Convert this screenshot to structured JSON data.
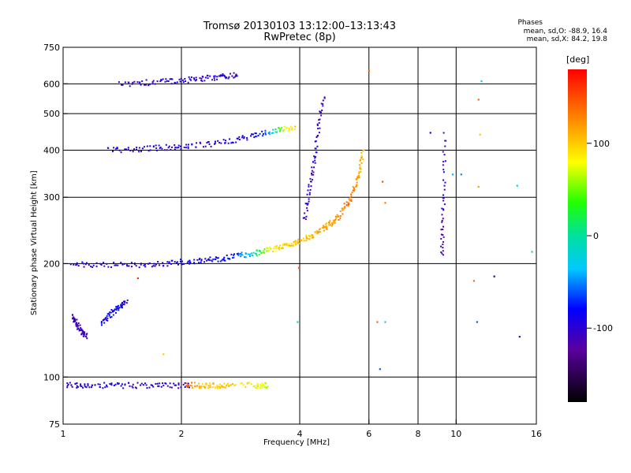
{
  "title_line1": "Tromsø 20130103 13:12:00–13:13:43",
  "title_line2": "RwPretec (8p)",
  "phases": {
    "heading": "Phases",
    "line1": "mean, sd,O: -88.9, 16.4",
    "line2": "mean, sd,X:  84.2, 19.8"
  },
  "colorbar": {
    "unit": "[deg]",
    "ticks": [
      "100",
      "0",
      "-100"
    ],
    "tick_values": [
      100,
      0,
      -100
    ],
    "range": [
      -180,
      180
    ]
  },
  "chart_data": {
    "type": "scatter",
    "xlabel": "Frequency [MHz]",
    "ylabel": "Stationary phase Virtual Height [km]",
    "x_scale": "log",
    "y_scale": "log",
    "xlim": [
      1,
      16
    ],
    "ylim": [
      75,
      750
    ],
    "x_ticks": [
      "1",
      "2",
      "4",
      "6",
      "8",
      "10",
      "16"
    ],
    "x_tick_values": [
      1,
      2,
      4,
      6,
      8,
      10,
      16
    ],
    "y_ticks": [
      "750",
      "600",
      "500",
      "400",
      "300",
      "200",
      "100",
      "75"
    ],
    "y_tick_values": [
      750,
      600,
      500,
      400,
      300,
      200,
      100,
      75
    ],
    "grid": true,
    "traces": [
      {
        "f": [
          1.05,
          1.2,
          1.4,
          1.6,
          1.8,
          2.0,
          2.2,
          2.4,
          2.6,
          2.8,
          3.0,
          3.2,
          3.4,
          3.6,
          3.8,
          4.0,
          4.2,
          4.4,
          4.6,
          4.8,
          5.0,
          5.2,
          5.4,
          5.6,
          5.7,
          5.8
        ],
        "h": [
          200,
          198,
          198,
          199,
          200,
          202,
          203,
          205,
          207,
          210,
          212,
          215,
          218,
          222,
          226,
          230,
          235,
          240,
          247,
          255,
          265,
          280,
          300,
          330,
          360,
          400
        ],
        "phase": [
          -100,
          -100,
          -100,
          -100,
          -95,
          -90,
          -90,
          -85,
          -80,
          -60,
          -30,
          40,
          80,
          95,
          100,
          100,
          105,
          110,
          115,
          120,
          125,
          130,
          135,
          120,
          110,
          100
        ]
      },
      {
        "f": [
          1.3,
          1.5,
          1.7,
          1.9,
          2.1,
          2.4,
          2.7,
          3.0,
          3.3,
          3.6,
          3.9
        ],
        "h": [
          400,
          402,
          405,
          407,
          410,
          415,
          425,
          435,
          445,
          455,
          460
        ],
        "phase": [
          -95,
          -100,
          -95,
          -100,
          -100,
          -95,
          -90,
          -85,
          -70,
          60,
          100
        ]
      },
      {
        "f": [
          1.4,
          1.6,
          1.8,
          2.0,
          2.2,
          2.4,
          2.6,
          2.8
        ],
        "h": [
          600,
          603,
          608,
          612,
          618,
          622,
          628,
          633
        ],
        "phase": [
          -100,
          -100,
          -100,
          -100,
          -100,
          -100,
          -100,
          -100
        ]
      },
      {
        "f": [
          1.02,
          1.1,
          1.2,
          1.35,
          1.5,
          1.7,
          1.9,
          2.1
        ],
        "h": [
          95,
          95,
          95,
          95,
          95,
          95,
          95,
          95
        ],
        "phase": [
          -95,
          -95,
          -95,
          -90,
          -100,
          -100,
          -100,
          -100
        ]
      },
      {
        "f": [
          2.05,
          2.2,
          2.35,
          2.5,
          2.65,
          3.1,
          3.2,
          3.3
        ],
        "h": [
          95,
          95,
          95,
          95,
          95,
          95,
          95,
          95
        ],
        "phase": [
          150,
          110,
          105,
          100,
          100,
          80,
          75,
          70
        ]
      },
      {
        "f": [
          1.05,
          1.08,
          1.1,
          1.12,
          1.15
        ],
        "h": [
          145,
          140,
          135,
          130,
          128
        ],
        "phase": [
          -110,
          -110,
          -110,
          -110,
          -110
        ]
      },
      {
        "f": [
          1.25,
          1.3,
          1.35,
          1.4,
          1.45
        ],
        "h": [
          138,
          145,
          150,
          155,
          158
        ],
        "phase": [
          -90,
          -85,
          -80,
          -85,
          -90
        ]
      },
      {
        "f": [
          4.1,
          4.2,
          4.3,
          4.4,
          4.5,
          4.6
        ],
        "h": [
          260,
          300,
          350,
          400,
          480,
          560
        ],
        "phase": [
          -110,
          -100,
          -120,
          -90,
          -110,
          -100
        ]
      },
      {
        "f": [
          9.2,
          9.25,
          9.3,
          9.35
        ],
        "h": [
          210,
          250,
          320,
          450
        ],
        "phase": [
          -110,
          -120,
          -100,
          -110
        ]
      }
    ],
    "outliers": [
      {
        "f": 3.98,
        "h": 195,
        "phase": 150
      },
      {
        "f": 3.95,
        "h": 140,
        "phase": -10
      },
      {
        "f": 6.3,
        "h": 140,
        "phase": 140
      },
      {
        "f": 6.6,
        "h": 140,
        "phase": -20
      },
      {
        "f": 6.4,
        "h": 105,
        "phase": -60
      },
      {
        "f": 6.5,
        "h": 330,
        "phase": 150
      },
      {
        "f": 6.6,
        "h": 290,
        "phase": 130
      },
      {
        "f": 11.4,
        "h": 320,
        "phase": 120
      },
      {
        "f": 11.4,
        "h": 545,
        "phase": 140
      },
      {
        "f": 11.5,
        "h": 440,
        "phase": 100
      },
      {
        "f": 12.5,
        "h": 185,
        "phase": -140
      },
      {
        "f": 14.5,
        "h": 128,
        "phase": -100
      },
      {
        "f": 14.3,
        "h": 322,
        "phase": -20
      },
      {
        "f": 15.6,
        "h": 215,
        "phase": -10
      },
      {
        "f": 11.1,
        "h": 180,
        "phase": 140
      },
      {
        "f": 11.3,
        "h": 140,
        "phase": -60
      },
      {
        "f": 1.8,
        "h": 115,
        "phase": 100
      },
      {
        "f": 1.55,
        "h": 183,
        "phase": 160
      },
      {
        "f": 8.6,
        "h": 445,
        "phase": -100
      },
      {
        "f": 9.8,
        "h": 345,
        "phase": -40
      },
      {
        "f": 10.3,
        "h": 345,
        "phase": -50
      },
      {
        "f": 11.6,
        "h": 610,
        "phase": -30
      },
      {
        "f": 6.0,
        "h": 650,
        "phase": 140
      }
    ]
  }
}
